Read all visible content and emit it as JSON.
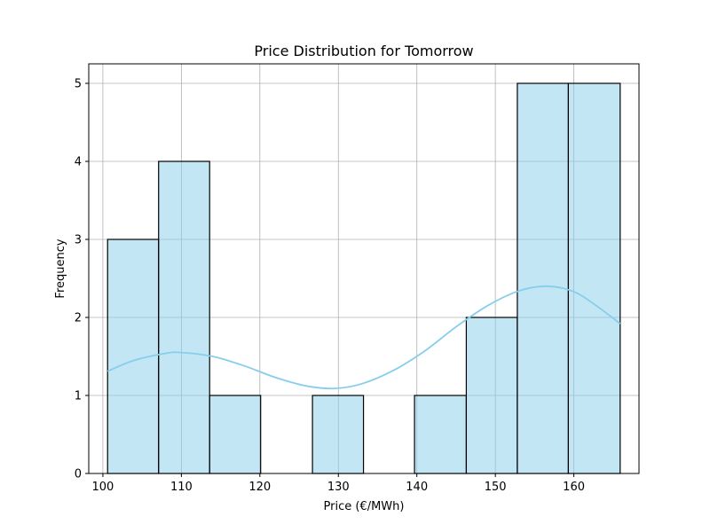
{
  "chart_data": {
    "type": "bar",
    "title": "Price Distribution for Tomorrow",
    "xlabel": "Price (€/MWh)",
    "ylabel": "Frequency",
    "xlim": [
      98.2,
      168.3
    ],
    "ylim": [
      0,
      5.25
    ],
    "xticks": [
      100,
      110,
      120,
      130,
      140,
      150,
      160
    ],
    "yticks": [
      0,
      1,
      2,
      3,
      4,
      5
    ],
    "grid": true,
    "bins": [
      {
        "start": 100.6,
        "end": 107.1,
        "count": 3
      },
      {
        "start": 107.1,
        "end": 113.6,
        "count": 4
      },
      {
        "start": 113.6,
        "end": 120.1,
        "count": 1
      },
      {
        "start": 120.1,
        "end": 126.7,
        "count": 0
      },
      {
        "start": 126.7,
        "end": 133.2,
        "count": 1
      },
      {
        "start": 133.2,
        "end": 139.7,
        "count": 0
      },
      {
        "start": 139.7,
        "end": 146.3,
        "count": 1
      },
      {
        "start": 146.3,
        "end": 152.8,
        "count": 2
      },
      {
        "start": 152.8,
        "end": 159.3,
        "count": 5
      },
      {
        "start": 159.3,
        "end": 165.9,
        "count": 5
      }
    ],
    "kde": {
      "x": [
        100.6,
        104,
        108,
        110,
        114,
        118,
        122,
        126,
        129.5,
        133,
        137,
        141,
        145,
        149,
        153,
        156.5,
        160,
        163,
        165.9
      ],
      "y": [
        1.31,
        1.45,
        1.54,
        1.55,
        1.5,
        1.38,
        1.23,
        1.12,
        1.09,
        1.15,
        1.32,
        1.57,
        1.88,
        2.15,
        2.34,
        2.4,
        2.33,
        2.14,
        1.92
      ]
    },
    "colors": {
      "bar_fill": "#87ceeb",
      "bar_fill_opacity": 0.5,
      "bar_edge": "#000000",
      "kde_line": "#87ceeb",
      "grid": "#b0b0b0"
    }
  }
}
